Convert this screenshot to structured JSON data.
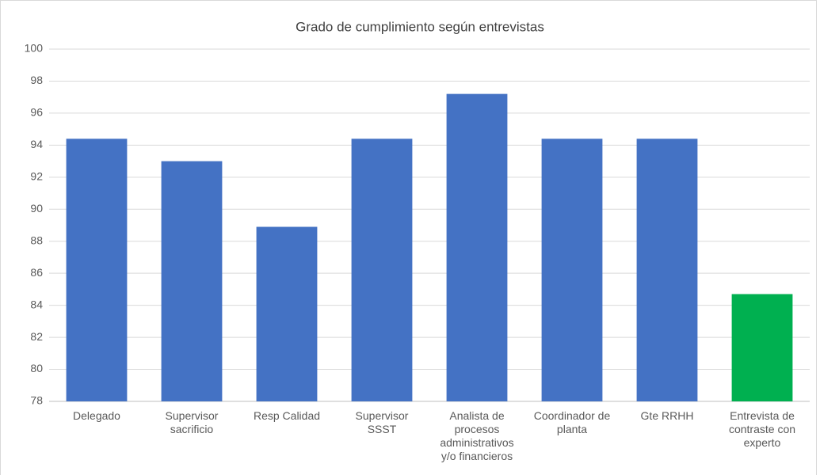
{
  "chart_data": {
    "type": "bar",
    "title": "Grado de cumplimiento según entrevistas",
    "categories": [
      "Delegado",
      "Supervisor sacrificio",
      "Resp Calidad",
      "Supervisor SSST",
      "Analista de procesos administrativos y/o financieros",
      "Coordinador de planta",
      "Gte RRHH",
      "Entrevista de contraste con experto"
    ],
    "values": [
      94.4,
      93,
      88.9,
      94.4,
      97.2,
      94.4,
      94.4,
      84.7
    ],
    "colors": [
      "#4472c4",
      "#4472c4",
      "#4472c4",
      "#4472c4",
      "#4472c4",
      "#4472c4",
      "#4472c4",
      "#00b050"
    ],
    "ylim": [
      78,
      100
    ],
    "yticks": [
      78,
      80,
      82,
      84,
      86,
      88,
      90,
      92,
      94,
      96,
      98,
      100
    ],
    "grid": true
  }
}
